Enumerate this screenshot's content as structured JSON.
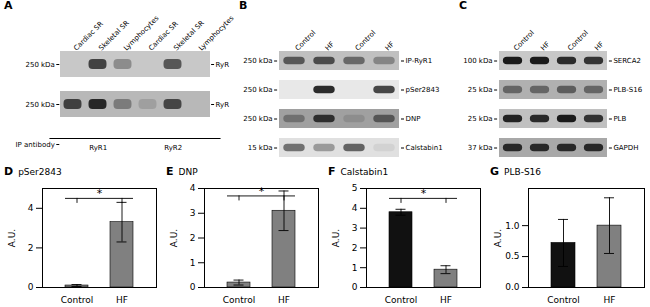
{
  "chart_data": [
    {
      "type": "heatmap",
      "panel_label": "A",
      "categories": [
        "Cardiac SR",
        "Skeletal SR",
        "Lymphocytes",
        "Cardiac SR",
        "Skeletal SR",
        "Lymphocytes"
      ],
      "rows": [
        "RyR",
        "RyR"
      ],
      "row_labels": [
        "250 kDa",
        "250 kDa"
      ],
      "colors": [
        "#c8c8c8",
        "#b8b8b8"
      ],
      "cells": [
        [
          0.0,
          1.0,
          0.45,
          0.0,
          0.85,
          0.0
        ],
        [
          1.0,
          1.2,
          0.5,
          0.2,
          0.95,
          0.0
        ]
      ],
      "group_title": "IP antibody",
      "groups": [
        "RyR1",
        "RyR2"
      ]
    },
    {
      "type": "heatmap",
      "panel_label": "B",
      "categories": [
        "Control",
        "HF",
        "Control",
        "HF"
      ],
      "rows": [
        "IP-RyR1",
        "pSer2843",
        "DNP",
        "Calstabin1"
      ],
      "row_labels": [
        "250 kDa",
        "250 kDa",
        "250 kDa",
        "15 kDa"
      ],
      "colors": [
        "#c0c0c0",
        "#e8e8e8",
        "#a0a0a0",
        "#e0e0e0"
      ],
      "cells": [
        [
          0.9,
          1.0,
          0.75,
          0.5
        ],
        [
          0.0,
          1.3,
          0.0,
          1.1
        ],
        [
          0.5,
          1.2,
          0.2,
          0.8
        ],
        [
          0.8,
          0.5,
          0.9,
          0.1
        ]
      ]
    },
    {
      "type": "heatmap",
      "panel_label": "C",
      "categories": [
        "Control",
        "HF",
        "Control",
        "HF"
      ],
      "rows": [
        "SERCA2",
        "PLB-S16",
        "PLB",
        "GAPDH"
      ],
      "row_labels": [
        "100 kDa",
        "25 kDa",
        "25 kDa",
        "37 kDa"
      ],
      "colors": [
        "#c8c8c8",
        "#b0b0b0",
        "#c0c0c0",
        "#a8a8a8"
      ],
      "cells": [
        [
          1.0,
          1.0,
          0.9,
          0.85
        ],
        [
          0.5,
          0.5,
          0.55,
          0.5
        ],
        [
          0.95,
          0.9,
          1.0,
          0.85
        ],
        [
          0.9,
          0.9,
          0.9,
          0.9
        ]
      ]
    },
    {
      "type": "bar",
      "panel_label": "D",
      "title": "pSer2843",
      "categories": [
        "Control",
        "HF"
      ],
      "values": [
        0.1,
        3.3
      ],
      "errors": [
        0.05,
        1.0
      ],
      "colors": [
        "#808080",
        "#808080"
      ],
      "ylabel": "A.U.",
      "ylim": [
        0,
        5
      ],
      "yticks": [
        0,
        2,
        4
      ],
      "annotations": [
        {
          "text": "*",
          "x1": "Control",
          "x2": "HF",
          "y": 4.5
        }
      ]
    },
    {
      "type": "bar",
      "panel_label": "E",
      "title": "DNP",
      "categories": [
        "Control",
        "HF"
      ],
      "values": [
        0.2,
        3.1
      ],
      "errors": [
        0.1,
        0.8
      ],
      "colors": [
        "#808080",
        "#808080"
      ],
      "ylabel": "A.U.",
      "ylim": [
        0,
        4
      ],
      "yticks": [
        0,
        1,
        2,
        3,
        4
      ],
      "annotations": [
        {
          "text": "*",
          "x1": "Control",
          "x2": "HF",
          "y": 3.7
        }
      ]
    },
    {
      "type": "bar",
      "panel_label": "F",
      "title": "Calstabin1",
      "categories": [
        "Control",
        "HF"
      ],
      "values": [
        3.8,
        0.9
      ],
      "errors": [
        0.15,
        0.2
      ],
      "colors": [
        "#111111",
        "#808080"
      ],
      "ylabel": "A.U.",
      "ylim": [
        0,
        5
      ],
      "yticks": [
        0,
        1,
        2,
        3,
        4,
        5
      ],
      "annotations": [
        {
          "text": "*",
          "x1": "Control",
          "x2": "HF",
          "y": 4.5
        }
      ]
    },
    {
      "type": "bar",
      "panel_label": "G",
      "title": "PLB-S16",
      "categories": [
        "Control",
        "HF"
      ],
      "values": [
        0.72,
        1.0
      ],
      "errors": [
        0.38,
        0.45
      ],
      "colors": [
        "#111111",
        "#808080"
      ],
      "ylabel": "A.U.",
      "ylim": [
        0,
        1.6
      ],
      "yticks": [
        {
          "value": 0,
          "label": "0.0"
        },
        0.5,
        {
          "value": 1.0,
          "label": "1.0"
        }
      ]
    }
  ]
}
